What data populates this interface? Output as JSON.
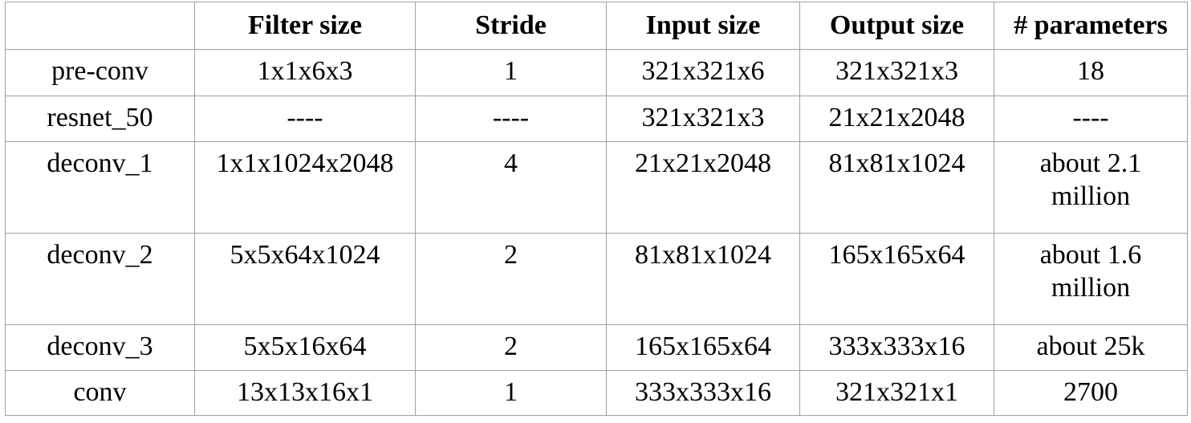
{
  "headers": [
    "",
    "Filter size",
    "Stride",
    "Input size",
    "Output size",
    "# parameters"
  ],
  "rows": [
    {
      "layer": "pre-conv",
      "filter": "1x1x6x3",
      "stride": "1",
      "input": "321x321x6",
      "output": "321x321x3",
      "params": [
        "18"
      ]
    },
    {
      "layer": "resnet_50",
      "filter": "----",
      "stride": "----",
      "input": "321x321x3",
      "output": "21x21x2048",
      "params": [
        "----"
      ]
    },
    {
      "layer": "deconv_1",
      "filter": "1x1x1024x2048",
      "stride": "4",
      "input": "21x21x2048",
      "output": "81x81x1024",
      "params": [
        "about 2.1",
        "million"
      ]
    },
    {
      "layer": "deconv_2",
      "filter": "5x5x64x1024",
      "stride": "2",
      "input": "81x81x1024",
      "output": "165x165x64",
      "params": [
        "about 1.6",
        "million"
      ]
    },
    {
      "layer": "deconv_3",
      "filter": "5x5x16x64",
      "stride": "2",
      "input": "165x165x64",
      "output": "333x333x16",
      "params": [
        "about 25k"
      ]
    },
    {
      "layer": "conv",
      "filter": "13x13x16x1",
      "stride": "1",
      "input": "333x333x16",
      "output": "321x321x1",
      "params": [
        "2700"
      ]
    }
  ]
}
